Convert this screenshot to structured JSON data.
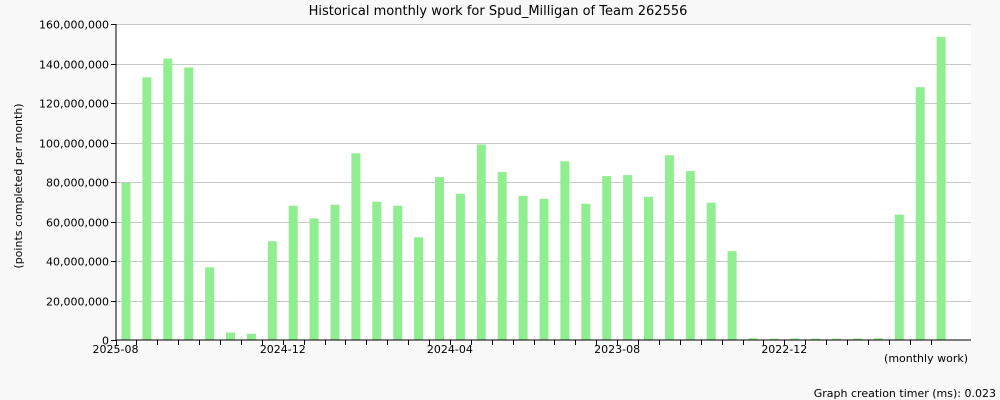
{
  "chart_data": {
    "type": "bar",
    "title": "Historical monthly work for Spud_Milligan of Team 262556",
    "ylabel": "(points completed per month)",
    "xlabel": "(monthly work)",
    "footer": "Graph creation timer (ms): 0.023",
    "ylim": [
      0,
      160000000
    ],
    "yticks": [
      0,
      20000000,
      40000000,
      60000000,
      80000000,
      100000000,
      120000000,
      140000000,
      160000000
    ],
    "ytick_labels": [
      "0",
      "20,000,000",
      "40,000,000",
      "60,000,000",
      "80,000,000",
      "100,000,000",
      "120,000,000",
      "140,000,000",
      "160,000,000"
    ],
    "x_tick_labels": [
      {
        "label": "2025-08",
        "index": 0
      },
      {
        "label": "2024-12",
        "index": 8
      },
      {
        "label": "2024-04",
        "index": 16
      },
      {
        "label": "2023-08",
        "index": 24
      },
      {
        "label": "2022-12",
        "index": 32
      }
    ],
    "bar_color": "#90ee90",
    "grid": true,
    "values": [
      79500000,
      133000000,
      142500000,
      138000000,
      36800000,
      3800000,
      3200000,
      50000000,
      68000000,
      61500000,
      68500000,
      94500000,
      70000000,
      68000000,
      52000000,
      82500000,
      74000000,
      99000000,
      85000000,
      73000000,
      71500000,
      90500000,
      69000000,
      83000000,
      83500000,
      72500000,
      93500000,
      85500000,
      69500000,
      45000000,
      900000,
      700000,
      800000,
      700000,
      700000,
      800000,
      900000,
      63500000,
      128000000,
      153500000
    ]
  }
}
